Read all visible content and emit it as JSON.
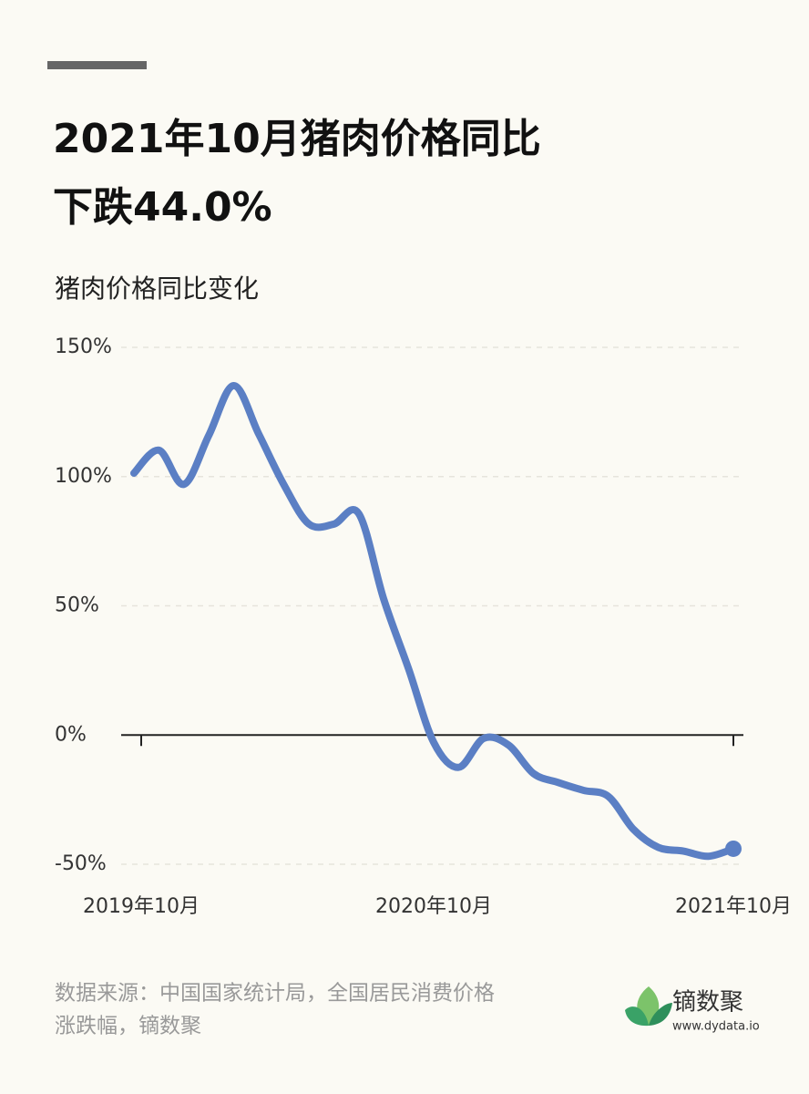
{
  "chart_data": {
    "type": "line",
    "title_lines": [
      "2021年10月猪肉价格同比",
      "下跌44.0%"
    ],
    "subtitle": "猪肉价格同比变化",
    "categories": [
      "2019年10月",
      null,
      null,
      null,
      null,
      null,
      null,
      null,
      null,
      null,
      null,
      null,
      "2020年10月",
      null,
      null,
      null,
      null,
      null,
      null,
      null,
      null,
      null,
      null,
      null,
      "2021年10月"
    ],
    "series": [
      {
        "name": "猪肉价格同比",
        "color": "#5b7fc4",
        "values": [
          101.3,
          110.2,
          97,
          116,
          135.2,
          116.4,
          96.9,
          81.7,
          81.6,
          85.7,
          52.6,
          25.5,
          -2.8,
          -12.5,
          -1.3,
          -3.9,
          -14.9,
          -18.4,
          -21.4,
          -23.8,
          -36.5,
          -43.5,
          -44.9,
          -46.9,
          -44.0
        ]
      }
    ],
    "ylim": [
      -50,
      150
    ],
    "yticks": [
      {
        "value": -50,
        "label": "-50%"
      },
      {
        "value": 0,
        "label": "0%"
      },
      {
        "value": 50,
        "label": "50%"
      },
      {
        "value": 100,
        "label": "100%"
      },
      {
        "value": 150,
        "label": "150%"
      }
    ],
    "grid": true,
    "source_lines": [
      "数据来源：中国国家统计局，全国居民消费价格",
      "涨跌幅，镝数聚"
    ],
    "logo": {
      "name": "镝数聚",
      "url": "www.dydata.io"
    }
  }
}
